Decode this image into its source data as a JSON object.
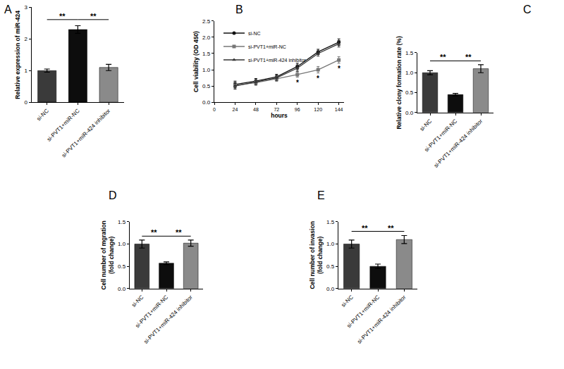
{
  "chart_data": [
    {
      "type": "bar",
      "title": "A",
      "categories": [
        "si-NC",
        "si-PVT1+miR-NC",
        "si-PVT1+miR-424 inhibitor"
      ],
      "values": [
        1.0,
        2.3,
        1.1
      ],
      "errors": [
        0.05,
        0.12,
        0.1
      ],
      "colors": [
        "#3a3a3a",
        "#0d0d0d",
        "#8a8a8a"
      ],
      "ylabel": "Relative expression of miR-424",
      "ylim": [
        0,
        3
      ],
      "yticks": [
        0,
        1,
        2,
        3
      ],
      "annotations": [
        {
          "between": [
            0,
            1
          ],
          "text": "**"
        },
        {
          "between": [
            1,
            2
          ],
          "text": "**"
        }
      ]
    },
    {
      "type": "line",
      "title": "B",
      "x": [
        24,
        48,
        72,
        96,
        120,
        144
      ],
      "series": [
        {
          "name": "si-NC",
          "color": "#111111",
          "marker": "circle",
          "values": [
            0.55,
            0.65,
            0.78,
            1.1,
            1.55,
            1.85
          ],
          "errors": [
            0.1,
            0.08,
            0.08,
            0.1,
            0.08,
            0.1
          ]
        },
        {
          "name": "si-PVT1+miR-NC",
          "color": "#777777",
          "marker": "square",
          "values": [
            0.52,
            0.6,
            0.72,
            0.85,
            1.0,
            1.3
          ],
          "errors": [
            0.1,
            0.08,
            0.08,
            0.08,
            0.1,
            0.1
          ]
        },
        {
          "name": "si-PVT1+miR-424 inhibitor",
          "color": "#333333",
          "marker": "triangle-up",
          "values": [
            0.5,
            0.62,
            0.75,
            1.05,
            1.5,
            1.8
          ],
          "errors": [
            0.1,
            0.08,
            0.08,
            0.1,
            0.08,
            0.1
          ]
        }
      ],
      "xlabel": "hours",
      "ylabel": "Cell viability (OD 450)",
      "xlim": [
        0,
        150
      ],
      "xticks": [
        0,
        24,
        48,
        72,
        96,
        120,
        144
      ],
      "ylim": [
        0,
        2.5
      ],
      "yticks": [
        {
          "value": 0,
          "label": "0.0"
        },
        {
          "value": 0.5,
          "label": "0.5"
        },
        {
          "value": 1,
          "label": "1.0"
        },
        {
          "value": 1.5,
          "label": "1.5"
        },
        {
          "value": 2,
          "label": "2.0"
        },
        {
          "value": 2.5,
          "label": "2.5"
        }
      ],
      "legend": "upper left",
      "annotations": [
        {
          "x": 96,
          "series": "si-PVT1+miR-NC",
          "text": "*"
        },
        {
          "x": 120,
          "series": "si-PVT1+miR-NC",
          "text": "*"
        },
        {
          "x": 144,
          "series": "si-PVT1+miR-NC",
          "text": "*"
        }
      ]
    },
    {
      "type": "bar",
      "title": "C",
      "categories": [
        "si-NC",
        "si-PVT1+miR-NC",
        "si-PVT1+miR-424 inhibitor"
      ],
      "values": [
        1.0,
        0.45,
        1.1
      ],
      "errors": [
        0.05,
        0.03,
        0.1
      ],
      "colors": [
        "#3a3a3a",
        "#0d0d0d",
        "#8a8a8a"
      ],
      "ylabel": "Relative clony formation rate (%)",
      "ylim": [
        0,
        1.5
      ],
      "yticks": [
        {
          "value": 0,
          "label": "0.0"
        },
        {
          "value": 0.5,
          "label": "0.5"
        },
        {
          "value": 1,
          "label": "1.0"
        },
        {
          "value": 1.5,
          "label": "1.5"
        }
      ],
      "annotations": [
        {
          "between": [
            0,
            1
          ],
          "text": "**"
        },
        {
          "between": [
            1,
            2
          ],
          "text": "**"
        }
      ]
    },
    {
      "type": "bar",
      "title": "D",
      "categories": [
        "si-NC",
        "si-PVT1+miR-NC",
        "si-PVT1+miR-424 inhibitor"
      ],
      "values": [
        1.0,
        0.57,
        1.02
      ],
      "errors": [
        0.09,
        0.03,
        0.07
      ],
      "colors": [
        "#3a3a3a",
        "#0d0d0d",
        "#8a8a8a"
      ],
      "ylabel": "Cell number of mgration\n(fold change)",
      "ylim": [
        0,
        1.5
      ],
      "yticks": [
        {
          "value": 0,
          "label": "0.0"
        },
        {
          "value": 0.5,
          "label": "0.5"
        },
        {
          "value": 1,
          "label": "1.0"
        },
        {
          "value": 1.5,
          "label": "1.5"
        }
      ],
      "annotations": [
        {
          "between": [
            0,
            1
          ],
          "text": "**"
        },
        {
          "between": [
            1,
            2
          ],
          "text": "**"
        }
      ]
    },
    {
      "type": "bar",
      "title": "E",
      "categories": [
        "si-NC",
        "si-PVT1+miR-NC",
        "si-PVT1+miR-424 inhibitor"
      ],
      "values": [
        1.0,
        0.5,
        1.1
      ],
      "errors": [
        0.09,
        0.05,
        0.09
      ],
      "colors": [
        "#3a3a3a",
        "#0d0d0d",
        "#8a8a8a"
      ],
      "ylabel": "Cell number of invasion\n(fold change)",
      "ylim": [
        0,
        1.5
      ],
      "yticks": [
        {
          "value": 0,
          "label": "0.0"
        },
        {
          "value": 0.5,
          "label": "0.5"
        },
        {
          "value": 1,
          "label": "1.0"
        },
        {
          "value": 1.5,
          "label": "1.5"
        }
      ],
      "annotations": [
        {
          "between": [
            0,
            1
          ],
          "text": "**"
        },
        {
          "between": [
            1,
            2
          ],
          "text": "**"
        }
      ]
    }
  ]
}
